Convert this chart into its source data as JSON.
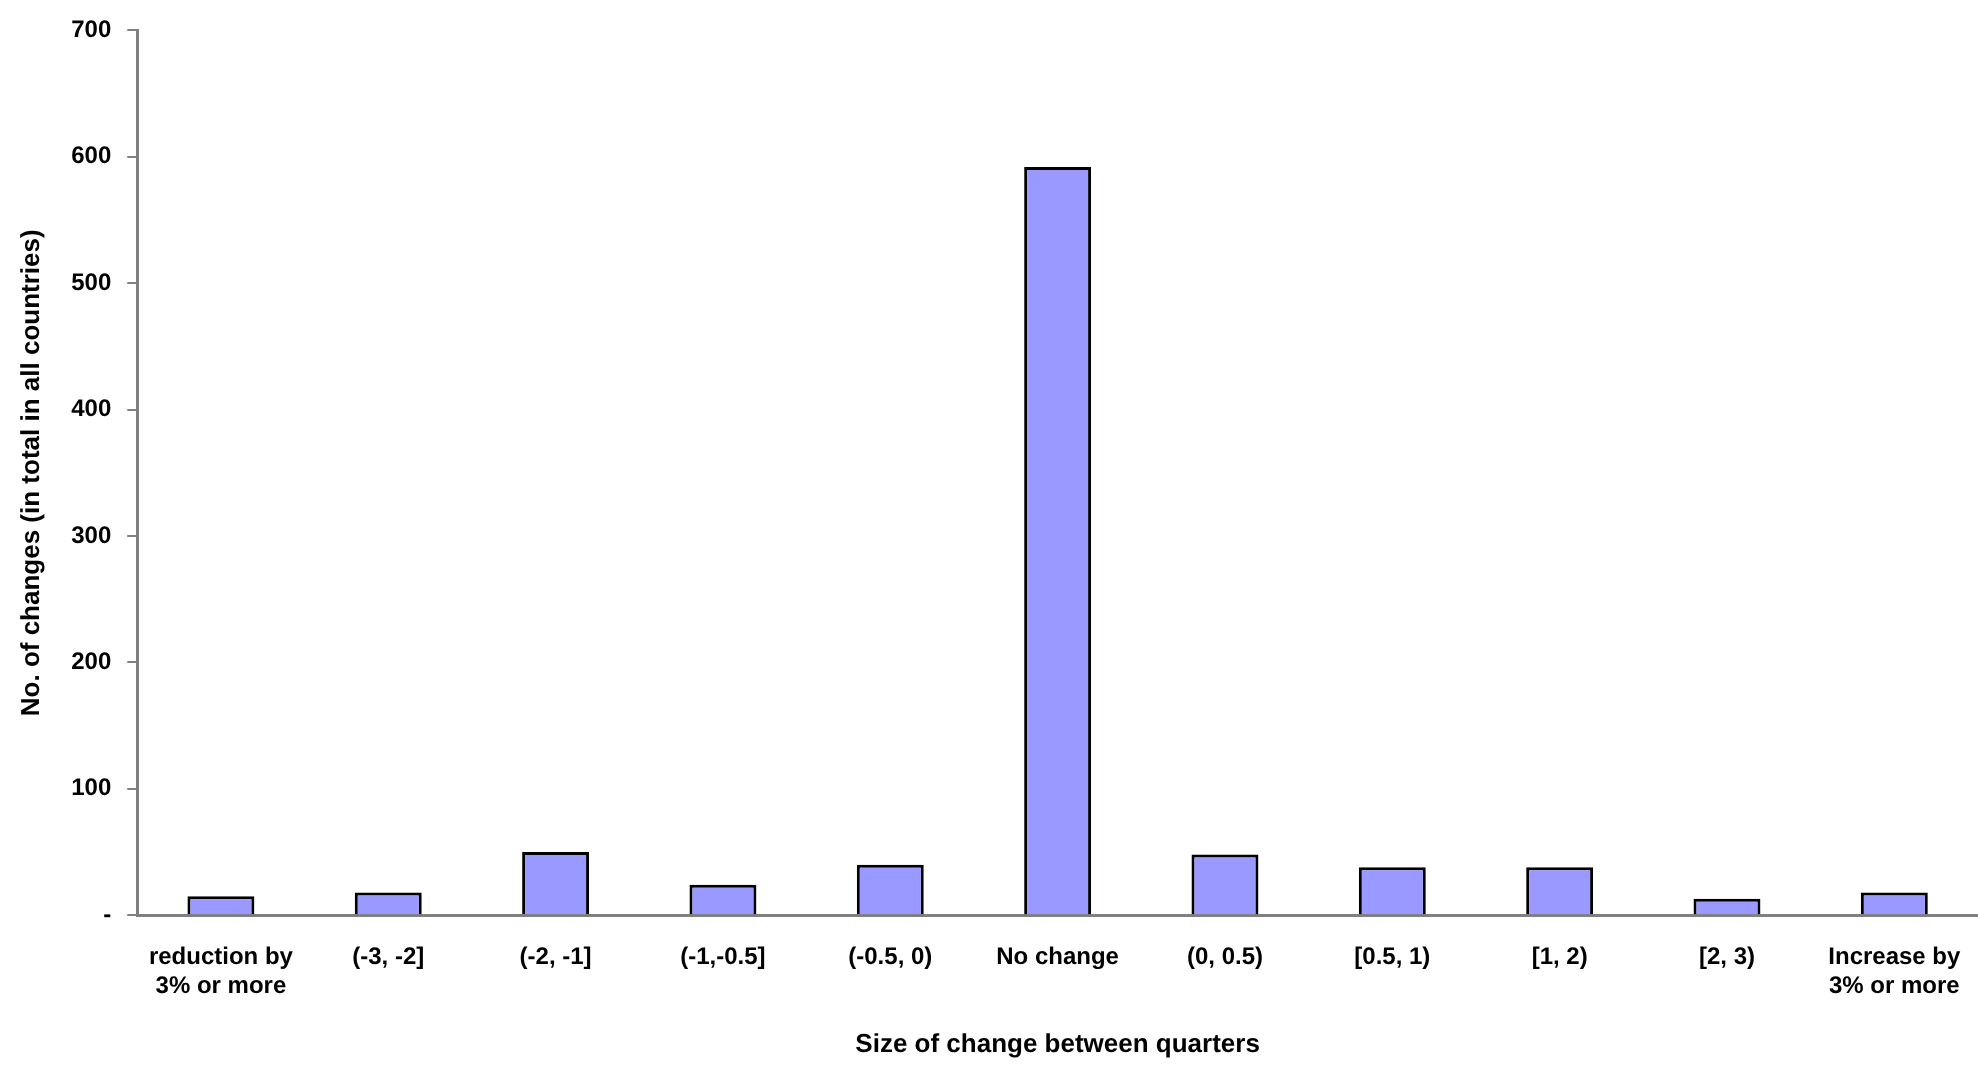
{
  "chart_data": {
    "type": "bar",
    "xlabel": "Size of change between quarters",
    "ylabel": "No. of changes (in total in all countries)",
    "categories": [
      "reduction by 3% or more",
      "(-3, -2]",
      "(-2, -1]",
      "(-1,-0.5]",
      "(-0.5, 0)",
      "No change",
      "(0, 0.5)",
      "[0.5, 1)",
      "[1, 2)",
      "[2, 3)",
      "Increase by 3% or more"
    ],
    "values": [
      15,
      18,
      50,
      24,
      40,
      592,
      48,
      38,
      38,
      13,
      18
    ],
    "color": "#9999ff",
    "ylim": [
      0,
      700
    ],
    "yticks": [
      {
        "value": 0,
        "label": "-"
      },
      100,
      200,
      300,
      400,
      500,
      600,
      700
    ],
    "grid": false,
    "legend": false
  }
}
